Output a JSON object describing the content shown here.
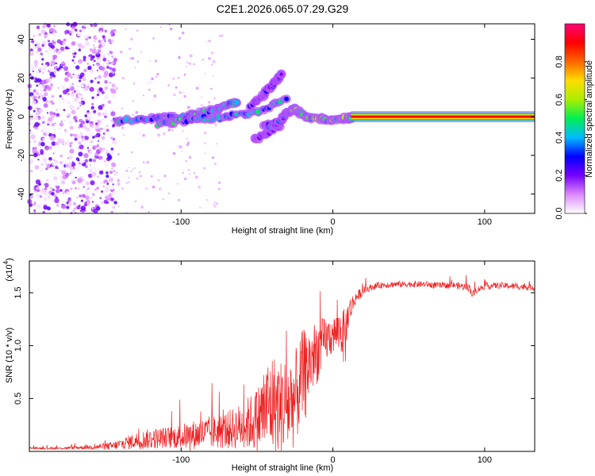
{
  "title": "C2E1.2026.065.07.29.G29",
  "chart_data": [
    {
      "type": "heatmap",
      "name": "spectrogram",
      "xlabel": "Height of straight line (km)",
      "ylabel": "Frequency (Hz)",
      "xlim": [
        -200,
        133
      ],
      "ylim": [
        -50,
        48
      ],
      "xticks": [
        -100,
        0,
        100
      ],
      "xtick_labels": [
        "-100",
        "0",
        "100"
      ],
      "yticks": [
        -40,
        -20,
        0,
        20,
        40
      ],
      "ytick_labels": [
        "-40",
        "-20",
        "0",
        "20",
        "40"
      ],
      "noise_region": [
        -200,
        -143
      ],
      "tones": [
        {
          "x": [
            -143,
            -120,
            -100,
            -85,
            -72,
            -62
          ],
          "y": [
            -2,
            -1,
            0,
            2,
            5,
            8
          ],
          "amp": 0.45
        },
        {
          "x": [
            -115,
            -100,
            -85,
            -70,
            -50,
            -30
          ],
          "y": [
            -4,
            -2,
            -1,
            0,
            2,
            10
          ],
          "amp": 0.45
        },
        {
          "x": [
            -55,
            -45,
            -38,
            -33
          ],
          "y": [
            5,
            12,
            18,
            22
          ],
          "amp": 0.25
        },
        {
          "x": [
            -52,
            -42,
            -35,
            -32
          ],
          "y": [
            -12,
            -8,
            -4,
            0
          ],
          "amp": 0.2
        },
        {
          "x": [
            -45,
            -38,
            -30,
            -24
          ],
          "y": [
            -5,
            -4,
            2,
            5
          ],
          "amp": 0.35
        },
        {
          "x": [
            -26,
            -18,
            -10,
            0,
            10,
            12
          ],
          "y": [
            4,
            0,
            -1,
            -2,
            -1,
            0
          ],
          "amp": 0.55
        },
        {
          "x": [
            12,
            133
          ],
          "y": [
            0,
            0
          ],
          "amp": 0.9
        }
      ],
      "colorbar": {
        "label": "Normalized spectral amplitude",
        "ticks": [
          0.0,
          0.2,
          0.4,
          0.6,
          0.8
        ],
        "tick_labels": [
          "0.0",
          "0.2",
          "0.4",
          "0.6",
          "0.8"
        ],
        "range": [
          0,
          1
        ],
        "colors": [
          "#ffffff",
          "#dd88ff",
          "#7700ff",
          "#0000ff",
          "#00bbff",
          "#00ee55",
          "#aaee00",
          "#ffdd00",
          "#ff6600",
          "#ff0000",
          "#ff0077"
        ]
      }
    },
    {
      "type": "line",
      "name": "snr",
      "xlabel": "Height of straight line (km)",
      "ylabel": "SNR (10 * v/v)",
      "scale_label": "(x10",
      "scale_exp": "4",
      "xlim": [
        -200,
        133
      ],
      "ylim": [
        0,
        1.8
      ],
      "xticks": [
        -100,
        0,
        100
      ],
      "xtick_labels": [
        "-100",
        "0",
        "100"
      ],
      "yticks": [
        0.5,
        1.0,
        1.5
      ],
      "ytick_labels": [
        "0.5",
        "1.0",
        "1.5"
      ],
      "color": "#ee2222",
      "x": [
        -200,
        -180,
        -160,
        -145,
        -140,
        -130,
        -120,
        -110,
        -100,
        -90,
        -80,
        -70,
        -60,
        -50,
        -45,
        -40,
        -35,
        -30,
        -25,
        -20,
        -15,
        -10,
        -5,
        0,
        5,
        8,
        10,
        15,
        20,
        25,
        30,
        40,
        50,
        60,
        70,
        80,
        90,
        92,
        95,
        100,
        110,
        120,
        133
      ],
      "y": [
        0.03,
        0.03,
        0.04,
        0.05,
        0.07,
        0.1,
        0.12,
        0.13,
        0.14,
        0.16,
        0.18,
        0.2,
        0.24,
        0.3,
        0.4,
        0.45,
        0.42,
        0.44,
        0.5,
        0.7,
        0.85,
        0.95,
        1.05,
        1.1,
        1.15,
        1.05,
        1.3,
        1.45,
        1.52,
        1.55,
        1.57,
        1.58,
        1.58,
        1.58,
        1.57,
        1.57,
        1.55,
        1.48,
        1.53,
        1.56,
        1.57,
        1.56,
        1.55
      ],
      "noise": [
        0.01,
        0.01,
        0.02,
        0.04,
        0.05,
        0.08,
        0.1,
        0.1,
        0.12,
        0.14,
        0.16,
        0.18,
        0.22,
        0.3,
        0.45,
        0.5,
        0.45,
        0.5,
        0.45,
        0.45,
        0.35,
        0.3,
        0.22,
        0.18,
        0.2,
        0.3,
        0.15,
        0.06,
        0.04,
        0.03,
        0.03,
        0.03,
        0.03,
        0.03,
        0.03,
        0.03,
        0.04,
        0.04,
        0.03,
        0.03,
        0.03,
        0.03,
        0.03
      ]
    }
  ]
}
